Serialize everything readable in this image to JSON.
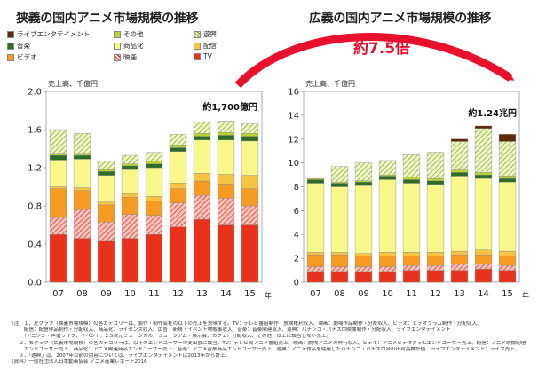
{
  "titles": {
    "left": "狭義の国内アニメ市場規模の推移",
    "right": "広義の国内アニメ市場規模の推移"
  },
  "multiplier_label": "約7.5倍",
  "legend": [
    {
      "name": "ライブエンタテイメント",
      "color": "#5a2a0a",
      "pattern": "solid"
    },
    {
      "name": "その他",
      "color": "#b8d434",
      "pattern": "solid"
    },
    {
      "name": "遊興",
      "color": "#c9df8a",
      "pattern": "hatch"
    },
    {
      "name": "音楽",
      "color": "#2f6b24",
      "pattern": "solid"
    },
    {
      "name": "商品化",
      "color": "#f7f78a",
      "pattern": "solid"
    },
    {
      "name": "配信",
      "color": "#f5c542",
      "pattern": "solid"
    },
    {
      "name": "ビデオ",
      "color": "#f59b24",
      "pattern": "solid"
    },
    {
      "name": "映画",
      "color": "#e2736a",
      "pattern": "hatch"
    },
    {
      "name": "TV",
      "color": "#e8321c",
      "pattern": "solid"
    }
  ],
  "chart_data": [
    {
      "type": "bar",
      "stacked": true,
      "title": "狭義の国内アニメ市場規模の推移",
      "ylabel": "売上高、千億円",
      "ylim": [
        0,
        2.0
      ],
      "yticks": [
        "0.0",
        "0.4",
        "0.8",
        "1.2",
        "1.6",
        "2.0"
      ],
      "ytick_values": [
        0,
        0.4,
        0.8,
        1.2,
        1.6,
        2.0
      ],
      "categories": [
        "07",
        "08",
        "09",
        "10",
        "11",
        "12",
        "13",
        "14",
        "15"
      ],
      "xunit": "年",
      "annotation": "約1,700億円",
      "series": [
        {
          "name": "TV",
          "values": [
            0.5,
            0.46,
            0.43,
            0.46,
            0.5,
            0.58,
            0.66,
            0.6,
            0.6
          ]
        },
        {
          "name": "映画",
          "values": [
            0.18,
            0.3,
            0.2,
            0.25,
            0.2,
            0.25,
            0.25,
            0.28,
            0.2
          ]
        },
        {
          "name": "ビデオ",
          "values": [
            0.3,
            0.2,
            0.18,
            0.18,
            0.15,
            0.15,
            0.15,
            0.15,
            0.18
          ]
        },
        {
          "name": "配信",
          "values": [
            0.02,
            0.03,
            0.03,
            0.04,
            0.05,
            0.06,
            0.08,
            0.1,
            0.14
          ]
        },
        {
          "name": "商品化",
          "values": [
            0.28,
            0.3,
            0.28,
            0.25,
            0.3,
            0.33,
            0.35,
            0.36,
            0.36
          ]
        },
        {
          "name": "音楽",
          "values": [
            0.05,
            0.04,
            0.04,
            0.04,
            0.04,
            0.04,
            0.04,
            0.05,
            0.05
          ]
        },
        {
          "name": "その他",
          "values": [
            0.02,
            0.02,
            0.02,
            0.02,
            0.03,
            0.03,
            0.03,
            0.03,
            0.03
          ]
        },
        {
          "name": "遊興",
          "values": [
            0.25,
            0.21,
            0.09,
            0.09,
            0.09,
            0.11,
            0.12,
            0.12,
            0.1
          ]
        },
        {
          "name": "ライブエンタテイメント",
          "values": [
            0,
            0,
            0,
            0,
            0,
            0,
            0,
            0,
            0
          ]
        }
      ]
    },
    {
      "type": "bar",
      "stacked": true,
      "title": "広義の国内アニメ市場規模の推移",
      "ylabel": "売上高、千億円",
      "ylim": [
        0,
        16
      ],
      "yticks": [
        "0",
        "2",
        "4",
        "6",
        "8",
        "10",
        "12",
        "14",
        "16"
      ],
      "ytick_values": [
        0,
        2,
        4,
        6,
        8,
        10,
        12,
        14,
        16
      ],
      "categories": [
        "07",
        "08",
        "09",
        "10",
        "11",
        "12",
        "13",
        "14",
        "15"
      ],
      "xunit": "年",
      "annotation": "約1.24兆円",
      "series": [
        {
          "name": "TV",
          "values": [
            0.9,
            0.9,
            0.9,
            0.9,
            1.0,
            1.0,
            1.0,
            1.1,
            1.0
          ]
        },
        {
          "name": "映画",
          "values": [
            0.4,
            0.4,
            0.4,
            0.4,
            0.4,
            0.4,
            0.5,
            0.4,
            0.4
          ]
        },
        {
          "name": "ビデオ",
          "values": [
            1.0,
            1.0,
            0.9,
            0.9,
            0.8,
            0.8,
            0.8,
            0.8,
            0.8
          ]
        },
        {
          "name": "配信",
          "values": [
            0.2,
            0.2,
            0.2,
            0.3,
            0.3,
            0.3,
            0.3,
            0.4,
            0.4
          ]
        },
        {
          "name": "商品化",
          "values": [
            5.8,
            5.5,
            5.7,
            6.1,
            5.8,
            5.7,
            6.3,
            6.0,
            5.8
          ]
        },
        {
          "name": "音楽",
          "values": [
            0.3,
            0.3,
            0.3,
            0.3,
            0.3,
            0.3,
            0.3,
            0.3,
            0.3
          ]
        },
        {
          "name": "その他",
          "values": [
            0.1,
            0.1,
            0.1,
            0.1,
            0.2,
            0.2,
            0.2,
            0.2,
            0.2
          ]
        },
        {
          "name": "遊興",
          "values": [
            0.0,
            1.3,
            1.5,
            1.2,
            1.9,
            2.2,
            2.4,
            3.7,
            2.9
          ]
        },
        {
          "name": "ライブエンタテイメント",
          "values": [
            0.0,
            0.0,
            0.0,
            0.0,
            0.0,
            0.0,
            0.2,
            0.2,
            0.6
          ]
        }
      ]
    }
  ],
  "notes": [
    "（注）１．左グラフ（狭義市場規模）の各カテゴリーは、製作・制作会社の以下の売上を意味する。TV：テレビ番組制作・放映権利収入、映画：劇場作品制作・分配収入、ビデオ：ビデオグラム制作・分配収入、",
    "　　　配信：配信作品制作・分配収入、商品化：ライセンス収入、広告・新規・イベント物販事収入、音楽：音楽関連収入、遊興：パチンコ・パチスロ映像制作・分配収入、ライブエンタテイメント",
    "　　　（アニソン・声優ライブ、イベント、2.5次元ミュージカル、ミュージアム・展示会、カフェ）分配収入、その他：以上に該当しない売上。",
    "　　２．右グラフ（広義市場規模）の各カテゴリーは、以下のエンドユーザーの支出額に該当。TV：テレビ局アニメ番組売上、映画：劇場アニメの興行収入、ビデオ：アニメビデオグラムエンドユーザー売上、配信：アニメ映像配信",
    "　　　エンドユーザー売上、商品化：アニメ関連商品エンドユーザー売上、音楽：アニメ音楽商品エンドユーザー売上、遊興：アニメ作品を使用したパチンコ・パチスロ台の出荷高推計値、ライブエンタテイメント：ライブ売上。",
    "　　３．「遊興」は、2007年以前の内容については、ライブエンタテイメントは2013年から計上。",
    "（資料）一般社団法人日本動画協会 アニメ産業レポート2016"
  ]
}
